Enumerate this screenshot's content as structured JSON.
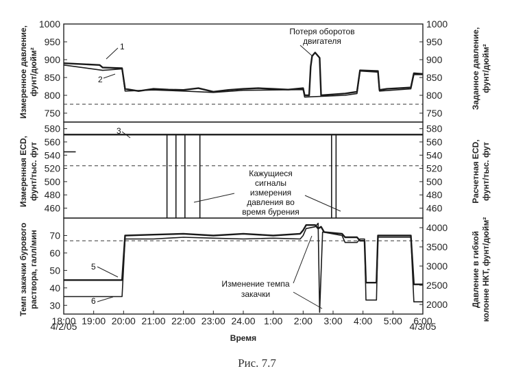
{
  "caption": "Рис. 7.7",
  "chart_data": {
    "type": "line",
    "x_axis": {
      "label": "Время",
      "ticks": [
        "18:00",
        "19:00",
        "20:00",
        "21:00",
        "22:00",
        "23:00",
        "24.00",
        "1:00",
        "2:00",
        "3:00",
        "4:00",
        "5:00",
        "6:00"
      ],
      "start_date": "4/2/05",
      "end_date": "4/3/05",
      "range_hours": [
        18,
        30
      ]
    },
    "panels": [
      {
        "id": "pressure",
        "left_axis": {
          "label_line1": "Измеренное давление,",
          "label_line2": "фунт/дюйм²",
          "range": [
            725,
            1000
          ],
          "ticks": [
            750,
            800,
            850,
            900,
            950,
            1000
          ]
        },
        "right_axis": {
          "label_line1": "Заданное давление,",
          "label_line2": "фунт/дюйм²",
          "range": [
            725,
            1000
          ],
          "ticks": [
            750,
            800,
            850,
            900,
            950,
            1000
          ]
        },
        "series": [
          {
            "marker": "1",
            "style": "solid",
            "points": [
              [
                18,
                890
              ],
              [
                19.2,
                885
              ],
              [
                19.3,
                878
              ],
              [
                19.95,
                876
              ],
              [
                20.05,
                818
              ],
              [
                20.5,
                812
              ],
              [
                21,
                818
              ],
              [
                21.5,
                816
              ],
              [
                22,
                815
              ],
              [
                22.5,
                820
              ],
              [
                23,
                810
              ],
              [
                23.5,
                815
              ],
              [
                24,
                818
              ],
              [
                24.5,
                820
              ],
              [
                25,
                818
              ],
              [
                25.5,
                816
              ],
              [
                26,
                820
              ],
              [
                26.05,
                800
              ],
              [
                26.2,
                800
              ],
              [
                26.25,
                880
              ],
              [
                26.3,
                910
              ],
              [
                26.4,
                920
              ],
              [
                26.55,
                905
              ],
              [
                26.6,
                800
              ],
              [
                27.4,
                805
              ],
              [
                27.8,
                810
              ],
              [
                27.9,
                870
              ],
              [
                28.5,
                868
              ],
              [
                28.55,
                815
              ],
              [
                28.8,
                818
              ],
              [
                29.6,
                822
              ],
              [
                29.7,
                862
              ],
              [
                30,
                860
              ]
            ]
          },
          {
            "marker": "2",
            "style": "solid",
            "points": [
              [
                18,
                885
              ],
              [
                19.3,
                870
              ],
              [
                19.95,
                874
              ],
              [
                20.05,
                812
              ],
              [
                21,
                815
              ],
              [
                22,
                812
              ],
              [
                23,
                808
              ],
              [
                24,
                814
              ],
              [
                25,
                815
              ],
              [
                26,
                816
              ],
              [
                26.05,
                795
              ],
              [
                27.4,
                800
              ],
              [
                27.8,
                805
              ],
              [
                27.9,
                868
              ],
              [
                28.5,
                865
              ],
              [
                28.55,
                812
              ],
              [
                29.6,
                818
              ],
              [
                29.7,
                858
              ],
              [
                30,
                858
              ]
            ]
          }
        ],
        "reference_lines": [
          775
        ],
        "annotations": [
          {
            "text_line1": "Потеря оборотов",
            "text_line2": "двигателя"
          }
        ]
      },
      {
        "id": "ecd",
        "left_axis": {
          "label_line1": "Измеренная ECD,",
          "label_line2": "фунт/тыс. фут",
          "range": [
            445,
            590
          ],
          "ticks": [
            460,
            480,
            500,
            520,
            540,
            560,
            580
          ]
        },
        "right_axis": {
          "label_line1": "Расчетная ECD,",
          "label_line2": "фунт/тыс. фут",
          "range": [
            445,
            590
          ],
          "ticks": [
            460,
            480,
            500,
            520,
            540,
            560,
            580
          ]
        },
        "series": [
          {
            "marker": "3",
            "style": "solid",
            "points": [
              [
                18,
                571
              ],
              [
                30,
                571
              ]
            ]
          },
          {
            "marker": "",
            "style": "solid",
            "points": [
              [
                18,
                545
              ],
              [
                18.4,
                545
              ]
            ]
          }
        ],
        "reference_lines": [
          524
        ],
        "dropouts_at_hours": [
          21.45,
          21.75,
          22.05,
          22.55,
          26.95,
          27.1
        ],
        "annotations": [
          {
            "text_line1": "Кажущиеся",
            "text_line2": "сигналы",
            "text_line3": "измерения",
            "text_line4": "давления во",
            "text_line5": "время бурения"
          }
        ]
      },
      {
        "id": "flow",
        "left_axis": {
          "label_line1": "Темп закачки бурового",
          "label_line2": "раствора, галл/мин",
          "range": [
            25,
            80
          ],
          "ticks": [
            30,
            40,
            50,
            60,
            70
          ]
        },
        "right_axis": {
          "label_line1": "Давление в гибкой",
          "label_line2": "колонне НКТ, фунт/дюйм²",
          "range": [
            1750,
            4250
          ],
          "ticks": [
            2000,
            2500,
            3000,
            3500,
            4000
          ]
        },
        "series": [
          {
            "marker": "5",
            "style": "solid",
            "points": [
              [
                18,
                44.5
              ],
              [
                19.95,
                44.5
              ],
              [
                20.05,
                70
              ],
              [
                21,
                70.5
              ],
              [
                22,
                71
              ],
              [
                23,
                70
              ],
              [
                24,
                71
              ],
              [
                25,
                70
              ],
              [
                25.9,
                71
              ],
              [
                26,
                73
              ],
              [
                26.1,
                76
              ],
              [
                26.4,
                76
              ],
              [
                26.5,
                74
              ],
              [
                26.6,
                75
              ],
              [
                26.7,
                72
              ],
              [
                27.3,
                71
              ],
              [
                27.4,
                69
              ],
              [
                27.8,
                69
              ],
              [
                27.9,
                67
              ],
              [
                28.05,
                67
              ],
              [
                28.1,
                43
              ],
              [
                28.45,
                43
              ],
              [
                28.5,
                70
              ],
              [
                29.6,
                70
              ],
              [
                29.7,
                42
              ],
              [
                30,
                42
              ]
            ]
          },
          {
            "marker": "6",
            "style": "solid",
            "points": [
              [
                18,
                35
              ],
              [
                19.95,
                35
              ],
              [
                20.05,
                68
              ],
              [
                21,
                68
              ],
              [
                22,
                69
              ],
              [
                23,
                68.5
              ],
              [
                24,
                68
              ],
              [
                25,
                68.5
              ],
              [
                25.9,
                68
              ],
              [
                26,
                70
              ],
              [
                26.1,
                74
              ],
              [
                26.4,
                75
              ],
              [
                26.5,
                77
              ],
              [
                26.55,
                26
              ],
              [
                26.65,
                72
              ],
              [
                27.3,
                70
              ],
              [
                27.4,
                66
              ],
              [
                27.8,
                66
              ],
              [
                27.9,
                68
              ],
              [
                28.05,
                68
              ],
              [
                28.1,
                33
              ],
              [
                28.45,
                33
              ],
              [
                28.5,
                69
              ],
              [
                29.6,
                69
              ],
              [
                29.7,
                32
              ],
              [
                30,
                32
              ]
            ]
          }
        ],
        "reference_lines": [
          67
        ],
        "annotations": [
          {
            "text_line1": "Изменение темпа",
            "text_line2": "закачки"
          }
        ]
      }
    ]
  }
}
